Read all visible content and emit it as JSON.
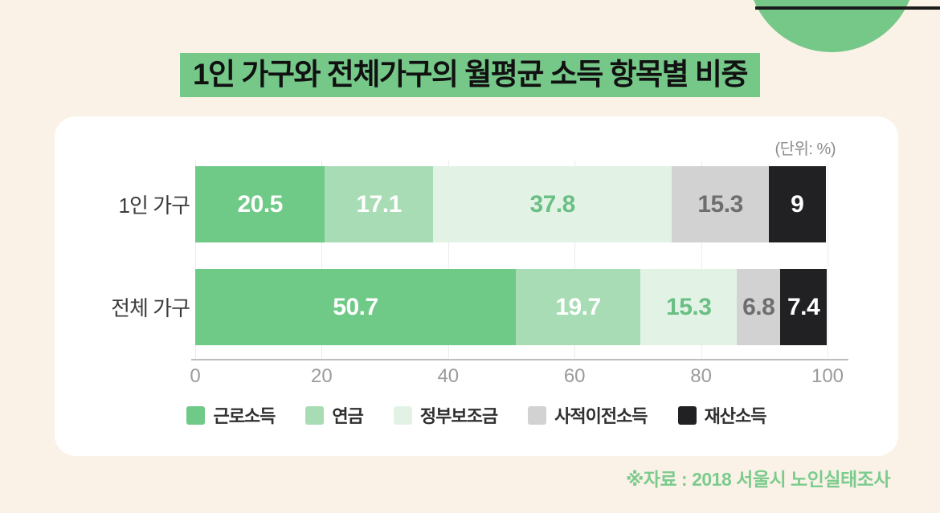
{
  "page": {
    "title": "1인 가구와 전체가구의 월평균 소득 항목별 비중",
    "unit_label": "(단위: %)",
    "source_note": "※자료 : 2018 서울시 노인실태조사"
  },
  "colors": {
    "background": "#faf2e6",
    "card": "#ffffff",
    "title_highlight": "#76c889",
    "title_text": "#111111",
    "deco_circle": "#76c889",
    "deco_line": "#1a1a1a",
    "grid_line": "#ececec",
    "axis_line": "#bdbdbd",
    "tick_text": "#9b9b9b",
    "category_text": "#3c3c3c",
    "legend_text": "#2f2f2f",
    "unit_text": "#8d8d8d",
    "source_text": "#7ccb8e"
  },
  "chart_data": {
    "type": "bar",
    "orientation": "horizontal",
    "stacked": true,
    "unit": "%",
    "title": "1인 가구와 전체가구의 월평균 소득 항목별 비중",
    "categories": [
      "1인 가구",
      "전체 가구"
    ],
    "series": [
      {
        "name": "근로소득",
        "color": "#6fc987",
        "label_color": "#ffffff",
        "values": [
          20.5,
          50.7
        ]
      },
      {
        "name": "연금",
        "color": "#a8dcb4",
        "label_color": "#ffffff",
        "values": [
          17.1,
          19.7
        ]
      },
      {
        "name": "정부보조금",
        "color": "#e2f3e6",
        "label_color": "#6abf85",
        "values": [
          37.8,
          15.3
        ]
      },
      {
        "name": "사적이전소득",
        "color": "#d2d2d2",
        "label_color": "#6e6e6e",
        "values": [
          15.3,
          6.8
        ]
      },
      {
        "name": "재산소득",
        "color": "#212124",
        "label_color": "#ffffff",
        "values": [
          9,
          7.4
        ]
      }
    ],
    "x_ticks": [
      0,
      20,
      40,
      60,
      80,
      100
    ],
    "xlim": [
      0,
      100
    ],
    "grid": true,
    "legend_position": "bottom",
    "source": "※자료 : 2018 서울시 노인실태조사"
  }
}
